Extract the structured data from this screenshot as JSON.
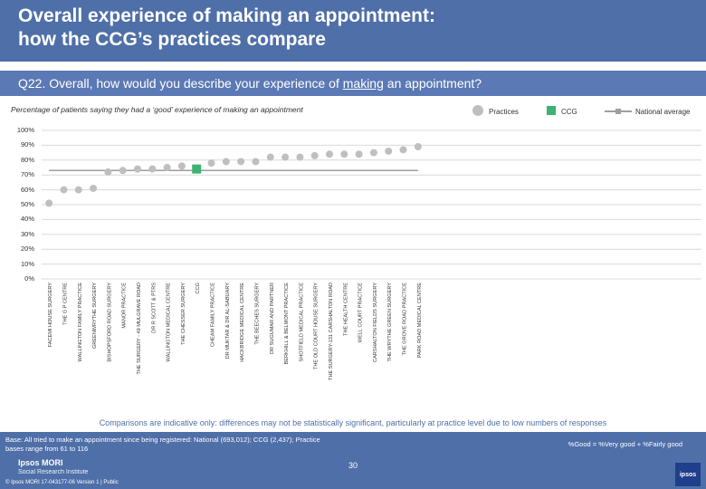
{
  "header": {
    "title": "Overall experience of making an appointment:\nhow the CCG’s practices compare"
  },
  "question": {
    "prefix": "Q22. Overall, how would you describe your experience of ",
    "emphasis": "making",
    "suffix": " an appointment?"
  },
  "subtitle": "Percentage of patients saying they had a ‘good’ experience of making an appointment",
  "legend": {
    "practices": "Practices",
    "ccg": "CCG",
    "national": "National average"
  },
  "colors": {
    "practice": "#bfbfbf",
    "ccg": "#3cb371",
    "national": "#9e9e9e",
    "gridline": "#d9d9d9"
  },
  "chart_data": {
    "type": "scatter",
    "title": "Percentage of patients saying they had a ‘good’ experience of making an appointment",
    "ylim": [
      0,
      100
    ],
    "yticks": [
      0,
      10,
      20,
      30,
      40,
      50,
      60,
      70,
      80,
      90,
      100
    ],
    "ytick_labels": [
      "0%",
      "10%",
      "20%",
      "30%",
      "40%",
      "50%",
      "60%",
      "70%",
      "80%",
      "90%",
      "100%"
    ],
    "national_average": 73,
    "categories": [
      "FACEMI HOUSE SURGERY",
      "THE G P CENTRE",
      "WALLINGTON FAMILY PRACTICE",
      "GREENWRYTHE SURGERY",
      "BISHOPSFORD ROAD SURGERY",
      "MANOR PRACTICE",
      "THE SURGERY - 49 MULGRAVE ROAD",
      "DR R SCOTT & PTRS",
      "WALLINGTON MEDICAL CENTRE",
      "THE CHESSER SURGERY",
      "CCG",
      "CHEAM FAMILY PRACTICE",
      "DR MUKTAR & DR AL-SABUARY",
      "HACKBRIDGE MEDICAL CENTRE",
      "THE BEECHES SURGERY",
      "DR SUGUMAR AND PARTNER",
      "BERKHILL & BELMONT PRACTICE",
      "SHOTFIELD MEDICAL PRACTICE",
      "THE OLD COURT HOUSE SURGERY",
      "THE SURGERY-131 CARSHALTON ROAD",
      "THE HEALTH CENTRE",
      "WELL COURT PRACTICE",
      "CARSHALTON FIELDS SURGERY",
      "THE WRYTHE GREEN SURGERY",
      "THE GROVE ROAD PRACTICE",
      "PARK ROAD MEDICAL CENTRE"
    ],
    "values": [
      51,
      60,
      60,
      61,
      72,
      73,
      74,
      74,
      75,
      76,
      74,
      78,
      79,
      79,
      79,
      82,
      82,
      82,
      83,
      84,
      84,
      84,
      85,
      86,
      87,
      89
    ],
    "highlight_category": "CCG"
  },
  "note": "Comparisons are indicative only: differences may not be statistically significant, particularly at practice level due to low numbers of responses",
  "footer": {
    "base": "Base: All tried to make an appointment since being registered: National (693,012); CCG (2,437); Practice bases range from 61 to 116",
    "key": "%Good = %Very good + %Fairly good",
    "brand": "Ipsos MORI",
    "brand_sub": "Social Research Institute",
    "copyright": "© Ipsos MORI     17-043177-06 Version 1 | Public",
    "page": "30",
    "logo": "ipsos"
  }
}
